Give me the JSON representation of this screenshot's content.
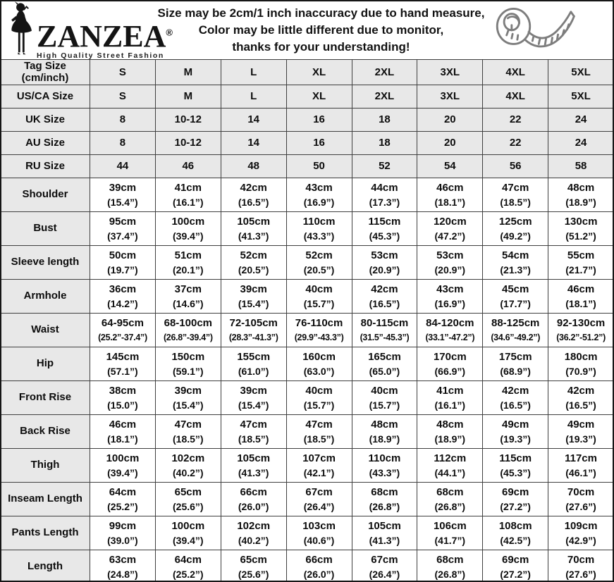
{
  "header": {
    "brand": "ZANZEA",
    "registered_mark": "®",
    "tagline": "High Quality Street Fashion",
    "notice_lines": [
      "Size may be 2cm/1 inch inaccuracy due to hand measure,",
      "Color may be little different due to monitor,",
      "thanks for your understanding!"
    ]
  },
  "colors": {
    "row_shade": "#e8e8e8",
    "grid_border": "#3f3f3f",
    "outer_border": "#161616",
    "text": "#0d0d0d",
    "icon_gray": "#7d7d7d",
    "background": "#ffffff"
  },
  "chart_data": {
    "type": "table",
    "columns": [
      "S",
      "M",
      "L",
      "XL",
      "2XL",
      "3XL",
      "4XL",
      "5XL"
    ],
    "size_rows": [
      {
        "label": "Tag Size\n(cm/inch)",
        "values": [
          "S",
          "M",
          "L",
          "XL",
          "2XL",
          "3XL",
          "4XL",
          "5XL"
        ]
      },
      {
        "label": "US/CA Size",
        "values": [
          "S",
          "M",
          "L",
          "XL",
          "2XL",
          "3XL",
          "4XL",
          "5XL"
        ]
      },
      {
        "label": "UK Size",
        "values": [
          "8",
          "10-12",
          "14",
          "16",
          "18",
          "20",
          "22",
          "24"
        ]
      },
      {
        "label": "AU Size",
        "values": [
          "8",
          "10-12",
          "14",
          "16",
          "18",
          "20",
          "22",
          "24"
        ]
      },
      {
        "label": "RU Size",
        "values": [
          "44",
          "46",
          "48",
          "50",
          "52",
          "54",
          "56",
          "58"
        ]
      }
    ],
    "measurement_rows": [
      {
        "label": "Shoulder",
        "cm": [
          "39cm",
          "41cm",
          "42cm",
          "43cm",
          "44cm",
          "46cm",
          "47cm",
          "48cm"
        ],
        "inch": [
          "(15.4”)",
          "(16.1”)",
          "(16.5”)",
          "(16.9”)",
          "(17.3”)",
          "(18.1”)",
          "(18.5”)",
          "(18.9”)"
        ]
      },
      {
        "label": "Bust",
        "cm": [
          "95cm",
          "100cm",
          "105cm",
          "110cm",
          "115cm",
          "120cm",
          "125cm",
          "130cm"
        ],
        "inch": [
          "(37.4”)",
          "(39.4”)",
          "(41.3”)",
          "(43.3”)",
          "(45.3”)",
          "(47.2”)",
          "(49.2”)",
          "(51.2”)"
        ]
      },
      {
        "label": "Sleeve length",
        "cm": [
          "50cm",
          "51cm",
          "52cm",
          "52cm",
          "53cm",
          "53cm",
          "54cm",
          "55cm"
        ],
        "inch": [
          "(19.7”)",
          "(20.1”)",
          "(20.5”)",
          "(20.5”)",
          "(20.9”)",
          "(20.9”)",
          "(21.3”)",
          "(21.7”)"
        ]
      },
      {
        "label": "Armhole",
        "cm": [
          "36cm",
          "37cm",
          "39cm",
          "40cm",
          "42cm",
          "43cm",
          "45cm",
          "46cm"
        ],
        "inch": [
          "(14.2”)",
          "(14.6”)",
          "(15.4”)",
          "(15.7”)",
          "(16.5”)",
          "(16.9”)",
          "(17.7”)",
          "(18.1”)"
        ]
      },
      {
        "label": "Waist",
        "cm": [
          "64-95cm",
          "68-100cm",
          "72-105cm",
          "76-110cm",
          "80-115cm",
          "84-120cm",
          "88-125cm",
          "92-130cm"
        ],
        "inch": [
          "(25.2”-37.4”)",
          "(26.8”-39.4”)",
          "(28.3”-41.3”)",
          "(29.9”-43.3”)",
          "(31.5”-45.3”)",
          "(33.1”-47.2”)",
          "(34.6”-49.2”)",
          "(36.2”-51.2”)"
        ]
      },
      {
        "label": "Hip",
        "cm": [
          "145cm",
          "150cm",
          "155cm",
          "160cm",
          "165cm",
          "170cm",
          "175cm",
          "180cm"
        ],
        "inch": [
          "(57.1”)",
          "(59.1”)",
          "(61.0”)",
          "(63.0”)",
          "(65.0”)",
          "(66.9”)",
          "(68.9”)",
          "(70.9”)"
        ]
      },
      {
        "label": "Front Rise",
        "cm": [
          "38cm",
          "39cm",
          "39cm",
          "40cm",
          "40cm",
          "41cm",
          "42cm",
          "42cm"
        ],
        "inch": [
          "(15.0”)",
          "(15.4”)",
          "(15.4”)",
          "(15.7”)",
          "(15.7”)",
          "(16.1”)",
          "(16.5”)",
          "(16.5”)"
        ]
      },
      {
        "label": "Back Rise",
        "cm": [
          "46cm",
          "47cm",
          "47cm",
          "47cm",
          "48cm",
          "48cm",
          "49cm",
          "49cm"
        ],
        "inch": [
          "(18.1”)",
          "(18.5”)",
          "(18.5”)",
          "(18.5”)",
          "(18.9”)",
          "(18.9”)",
          "(19.3”)",
          "(19.3”)"
        ]
      },
      {
        "label": "Thigh",
        "cm": [
          "100cm",
          "102cm",
          "105cm",
          "107cm",
          "110cm",
          "112cm",
          "115cm",
          "117cm"
        ],
        "inch": [
          "(39.4”)",
          "(40.2”)",
          "(41.3”)",
          "(42.1”)",
          "(43.3”)",
          "(44.1”)",
          "(45.3”)",
          "(46.1”)"
        ]
      },
      {
        "label": "Inseam Length",
        "cm": [
          "64cm",
          "65cm",
          "66cm",
          "67cm",
          "68cm",
          "68cm",
          "69cm",
          "70cm"
        ],
        "inch": [
          "(25.2”)",
          "(25.6”)",
          "(26.0”)",
          "(26.4”)",
          "(26.8”)",
          "(26.8”)",
          "(27.2”)",
          "(27.6”)"
        ]
      },
      {
        "label": "Pants Length",
        "cm": [
          "99cm",
          "100cm",
          "102cm",
          "103cm",
          "105cm",
          "106cm",
          "108cm",
          "109cm"
        ],
        "inch": [
          "(39.0”)",
          "(39.4”)",
          "(40.2”)",
          "(40.6”)",
          "(41.3”)",
          "(41.7”)",
          "(42.5”)",
          "(42.9”)"
        ]
      },
      {
        "label": "Length",
        "cm": [
          "63cm",
          "64cm",
          "65cm",
          "66cm",
          "67cm",
          "68cm",
          "69cm",
          "70cm"
        ],
        "inch": [
          "(24.8”)",
          "(25.2”)",
          "(25.6”)",
          "(26.0”)",
          "(26.4”)",
          "(26.8”)",
          "(27.2”)",
          "(27.6”)"
        ]
      }
    ]
  }
}
